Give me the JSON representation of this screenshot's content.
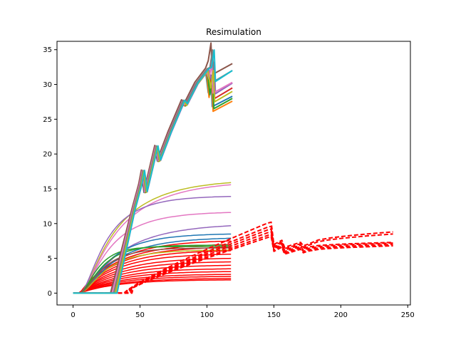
{
  "chart_data": {
    "type": "line",
    "title": "Resimulation",
    "xlabel": "",
    "ylabel": "",
    "xlim": [
      -12,
      252
    ],
    "ylim": [
      -1.7,
      36.2
    ],
    "xticks": [
      0,
      50,
      100,
      150,
      200,
      250
    ],
    "yticks": [
      0,
      5,
      10,
      15,
      20,
      25,
      30,
      35
    ],
    "grid": false,
    "legend": "none",
    "series_groups": [
      {
        "label": "sawtooth",
        "style": "solid",
        "width": 2,
        "onset": 30,
        "x_end": 119,
        "colors": [
          "#1f77b4",
          "#ff7f0e",
          "#2ca02c",
          "#d62728",
          "#9467bd",
          "#8c564b",
          "#e377c2",
          "#7f7f7f",
          "#bcbd22",
          "#17becf"
        ],
        "peak_values": [
          28.3,
          27.6,
          28.0,
          29.5,
          30.2,
          33.0,
          30.3,
          32.0,
          29.0,
          32.0
        ],
        "points": [
          [
            30,
            0
          ],
          [
            45,
            12
          ],
          [
            50,
            15.5
          ],
          [
            52,
            17.5
          ],
          [
            54,
            14.5
          ],
          [
            62,
            21
          ],
          [
            64,
            19
          ],
          [
            72,
            23
          ],
          [
            82,
            27.5
          ],
          [
            84,
            27
          ],
          [
            92,
            30
          ],
          [
            100,
            32
          ],
          [
            102,
            29.5
          ],
          [
            104,
            32
          ],
          [
            105,
            27.5
          ],
          [
            119,
            29
          ]
        ]
      },
      {
        "label": "saturating",
        "style": "solid",
        "width": 1.5,
        "x_end": 119,
        "series": [
          {
            "color": "#bcbd22",
            "final": 15.9,
            "onset": 5,
            "rate": 0.032
          },
          {
            "color": "#e377c2",
            "final": 15.6,
            "onset": 5,
            "rate": 0.03
          },
          {
            "color": "#9467bd",
            "final": 13.9,
            "onset": 5,
            "rate": 0.045
          },
          {
            "color": "#e377c2",
            "final": 11.6,
            "onset": 5,
            "rate": 0.04
          },
          {
            "color": "#9467bd",
            "final": 9.7,
            "onset": 5,
            "rate": 0.03
          },
          {
            "color": "#1f77b4",
            "final": 8.5,
            "onset": 5,
            "rate": 0.04
          },
          {
            "color": "#1f77b4",
            "final": 7.9,
            "onset": 5,
            "rate": 0.035
          },
          {
            "color": "#2ca02c",
            "final": 6.9,
            "onset": 5,
            "rate": 0.06
          },
          {
            "color": "#2ca02c",
            "final": 6.7,
            "onset": 5,
            "rate": 0.08
          },
          {
            "color": "#bcbd22",
            "final": 6.2,
            "onset": 5,
            "rate": 0.045
          },
          {
            "color": "#8c564b",
            "final": 6.5,
            "onset": 5,
            "rate": 0.055
          }
        ]
      },
      {
        "label": "red-solid",
        "style": "solid",
        "width": 1.5,
        "color": "#ff0000",
        "x_end": 119,
        "onset": 5,
        "finals": [
          7.5,
          7.0,
          6.6,
          6.1,
          5.6,
          5.0,
          4.5,
          4.0,
          3.5,
          3.1,
          2.7,
          2.4,
          2.1,
          1.9
        ]
      },
      {
        "label": "red-dashed",
        "style": "dashed",
        "width": 2,
        "color": "#ff0000",
        "x_start": 0,
        "x_end": 239,
        "onset": 38,
        "series": [
          {
            "peak": 10.2,
            "after_drop": 7.0,
            "final": 8.8
          },
          {
            "peak": 9.6,
            "after_drop": 6.8,
            "final": 8.5
          },
          {
            "peak": 9.2,
            "after_drop": 6.6,
            "final": 7.3
          },
          {
            "peak": 8.8,
            "after_drop": 6.4,
            "final": 7.2
          },
          {
            "peak": 8.4,
            "after_drop": 6.2,
            "final": 7.0
          },
          {
            "peak": 8.1,
            "after_drop": 6.0,
            "final": 6.8
          }
        ]
      }
    ]
  }
}
